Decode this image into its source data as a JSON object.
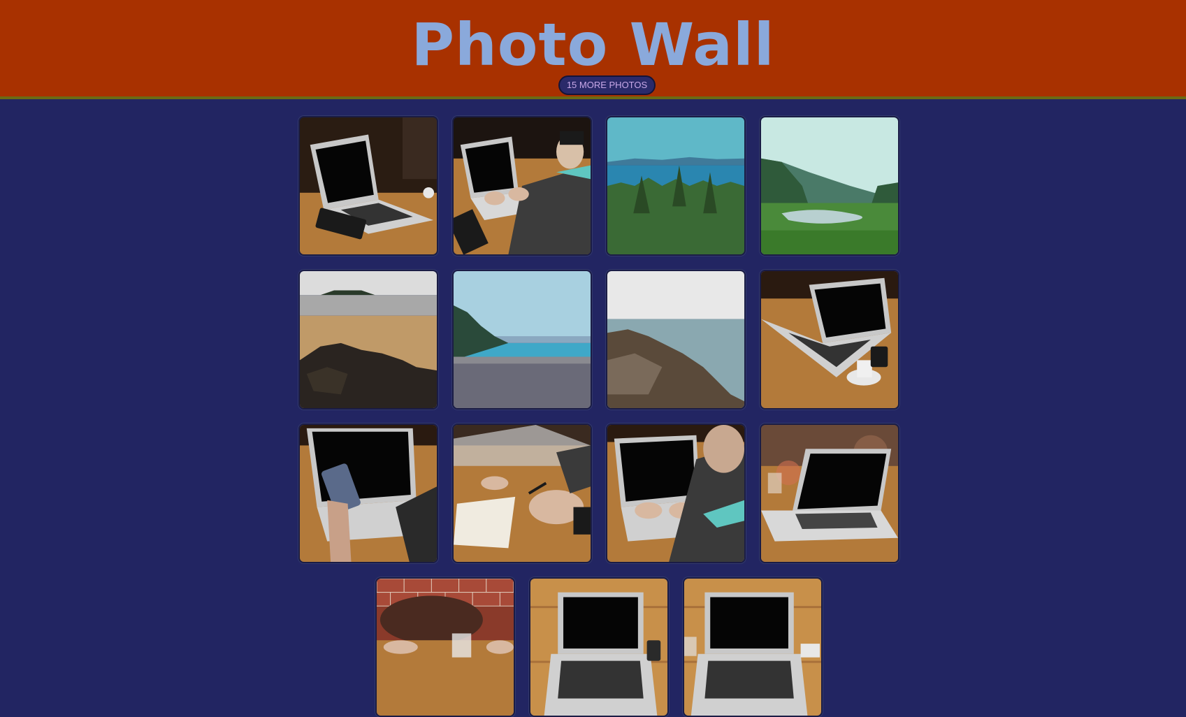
{
  "header": {
    "title": "Photo Wall",
    "more_button_label": "15 MORE PHOTOS"
  },
  "colors": {
    "header_background": "#a83100",
    "page_background": "#222562",
    "title_color": "#8aa9db"
  },
  "photos": [
    {
      "subject": "laptop-on-table"
    },
    {
      "subject": "man-typing-on-laptop"
    },
    {
      "subject": "forest-and-lake"
    },
    {
      "subject": "valley-river"
    },
    {
      "subject": "beach-rocks"
    },
    {
      "subject": "pebble-beach"
    },
    {
      "subject": "rocky-shore"
    },
    {
      "subject": "laptop-with-coffee"
    },
    {
      "subject": "hand-holding-phone"
    },
    {
      "subject": "writing-in-notebook"
    },
    {
      "subject": "typing-on-laptop"
    },
    {
      "subject": "laptop-cafe-table"
    },
    {
      "subject": "leather-bag-brick-wall"
    },
    {
      "subject": "laptop-on-wood-table"
    },
    {
      "subject": "laptop-with-glass"
    }
  ]
}
